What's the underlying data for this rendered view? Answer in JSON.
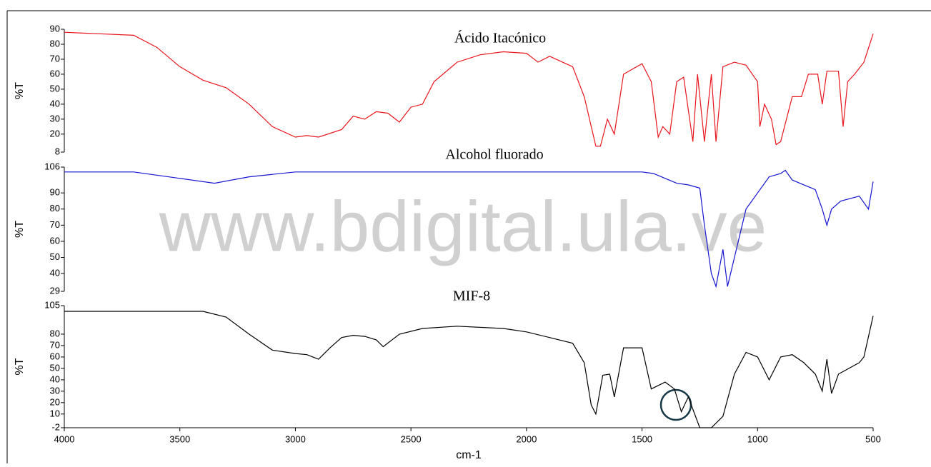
{
  "watermark": "www.bdigital.ula.ve",
  "chart_data": [
    {
      "type": "line",
      "title": "Ácido Itacónico",
      "y_label": "%T",
      "xlim": [
        4000,
        500
      ],
      "ylim": [
        8,
        90
      ],
      "yticks": [
        8,
        20,
        30,
        40,
        50,
        60,
        70,
        80,
        90
      ],
      "x": [
        4000,
        3700,
        3600,
        3500,
        3400,
        3300,
        3200,
        3100,
        3000,
        2950,
        2900,
        2800,
        2750,
        2700,
        2650,
        2600,
        2550,
        2500,
        2450,
        2400,
        2300,
        2200,
        2100,
        2000,
        1950,
        1900,
        1800,
        1750,
        1700,
        1680,
        1650,
        1620,
        1580,
        1500,
        1460,
        1430,
        1410,
        1380,
        1350,
        1320,
        1280,
        1260,
        1230,
        1200,
        1180,
        1150,
        1100,
        1050,
        1000,
        990,
        970,
        940,
        920,
        900,
        850,
        810,
        780,
        740,
        720,
        700,
        650,
        630,
        610,
        580,
        540,
        500
      ],
      "series": [
        {
          "color": "#e8141c",
          "values": [
            88,
            86,
            78,
            65,
            56,
            51,
            40,
            25,
            18,
            19,
            18,
            23,
            32,
            30,
            35,
            34,
            28,
            38,
            40,
            55,
            68,
            73,
            75,
            74,
            68,
            72,
            65,
            45,
            12,
            12,
            30,
            20,
            60,
            67,
            55,
            18,
            25,
            20,
            55,
            58,
            15,
            60,
            15,
            60,
            15,
            65,
            68,
            66,
            55,
            25,
            40,
            30,
            13,
            15,
            45,
            45,
            60,
            60,
            40,
            62,
            62,
            25,
            55,
            60,
            68,
            87
          ]
        }
      ]
    },
    {
      "type": "line",
      "title": "Alcohol fluorado",
      "y_label": "%T",
      "xlim": [
        4000,
        500
      ],
      "ylim": [
        29,
        106
      ],
      "yticks": [
        29,
        40,
        50,
        60,
        70,
        80,
        90,
        106
      ],
      "x": [
        4000,
        3700,
        3500,
        3350,
        3200,
        3000,
        2500,
        2000,
        1500,
        1450,
        1400,
        1350,
        1300,
        1250,
        1230,
        1200,
        1180,
        1150,
        1130,
        1100,
        1050,
        1000,
        950,
        900,
        880,
        850,
        800,
        750,
        720,
        700,
        680,
        640,
        560,
        520,
        500
      ],
      "series": [
        {
          "color": "#1414d2",
          "values": [
            103,
            103,
            99,
            96,
            100,
            103,
            103,
            103,
            103,
            102,
            99,
            96,
            95,
            93,
            70,
            40,
            32,
            55,
            32,
            50,
            80,
            90,
            100,
            102,
            104,
            98,
            95,
            92,
            80,
            70,
            80,
            85,
            88,
            80,
            97
          ]
        }
      ]
    },
    {
      "type": "line",
      "title": "MIF-8",
      "y_label": "%T",
      "x_label": "cm-1",
      "xlim": [
        4000,
        500
      ],
      "xticks": [
        4000,
        3500,
        3000,
        2500,
        2000,
        1500,
        1000,
        500
      ],
      "ylim": [
        -2,
        105
      ],
      "yticks": [
        -2,
        10,
        20,
        30,
        40,
        50,
        60,
        70,
        80,
        105
      ],
      "x": [
        4000,
        3600,
        3400,
        3300,
        3200,
        3100,
        3000,
        2950,
        2900,
        2850,
        2800,
        2750,
        2700,
        2650,
        2620,
        2550,
        2450,
        2300,
        2100,
        2000,
        1900,
        1800,
        1750,
        1720,
        1700,
        1670,
        1640,
        1620,
        1580,
        1500,
        1460,
        1400,
        1360,
        1330,
        1300,
        1250,
        1200,
        1150,
        1100,
        1050,
        1000,
        950,
        900,
        850,
        800,
        750,
        720,
        700,
        680,
        650,
        560,
        540,
        500
      ],
      "series": [
        {
          "color": "#000000",
          "values": [
            100,
            100,
            100,
            95,
            80,
            66,
            63,
            62,
            58,
            68,
            77,
            79,
            78,
            75,
            69,
            80,
            85,
            87,
            85,
            82,
            77,
            72,
            55,
            18,
            10,
            44,
            45,
            25,
            68,
            68,
            32,
            38,
            32,
            12,
            25,
            -2,
            -2,
            8,
            45,
            64,
            60,
            40,
            60,
            62,
            55,
            45,
            30,
            58,
            28,
            45,
            55,
            60,
            96
          ]
        }
      ]
    }
  ]
}
